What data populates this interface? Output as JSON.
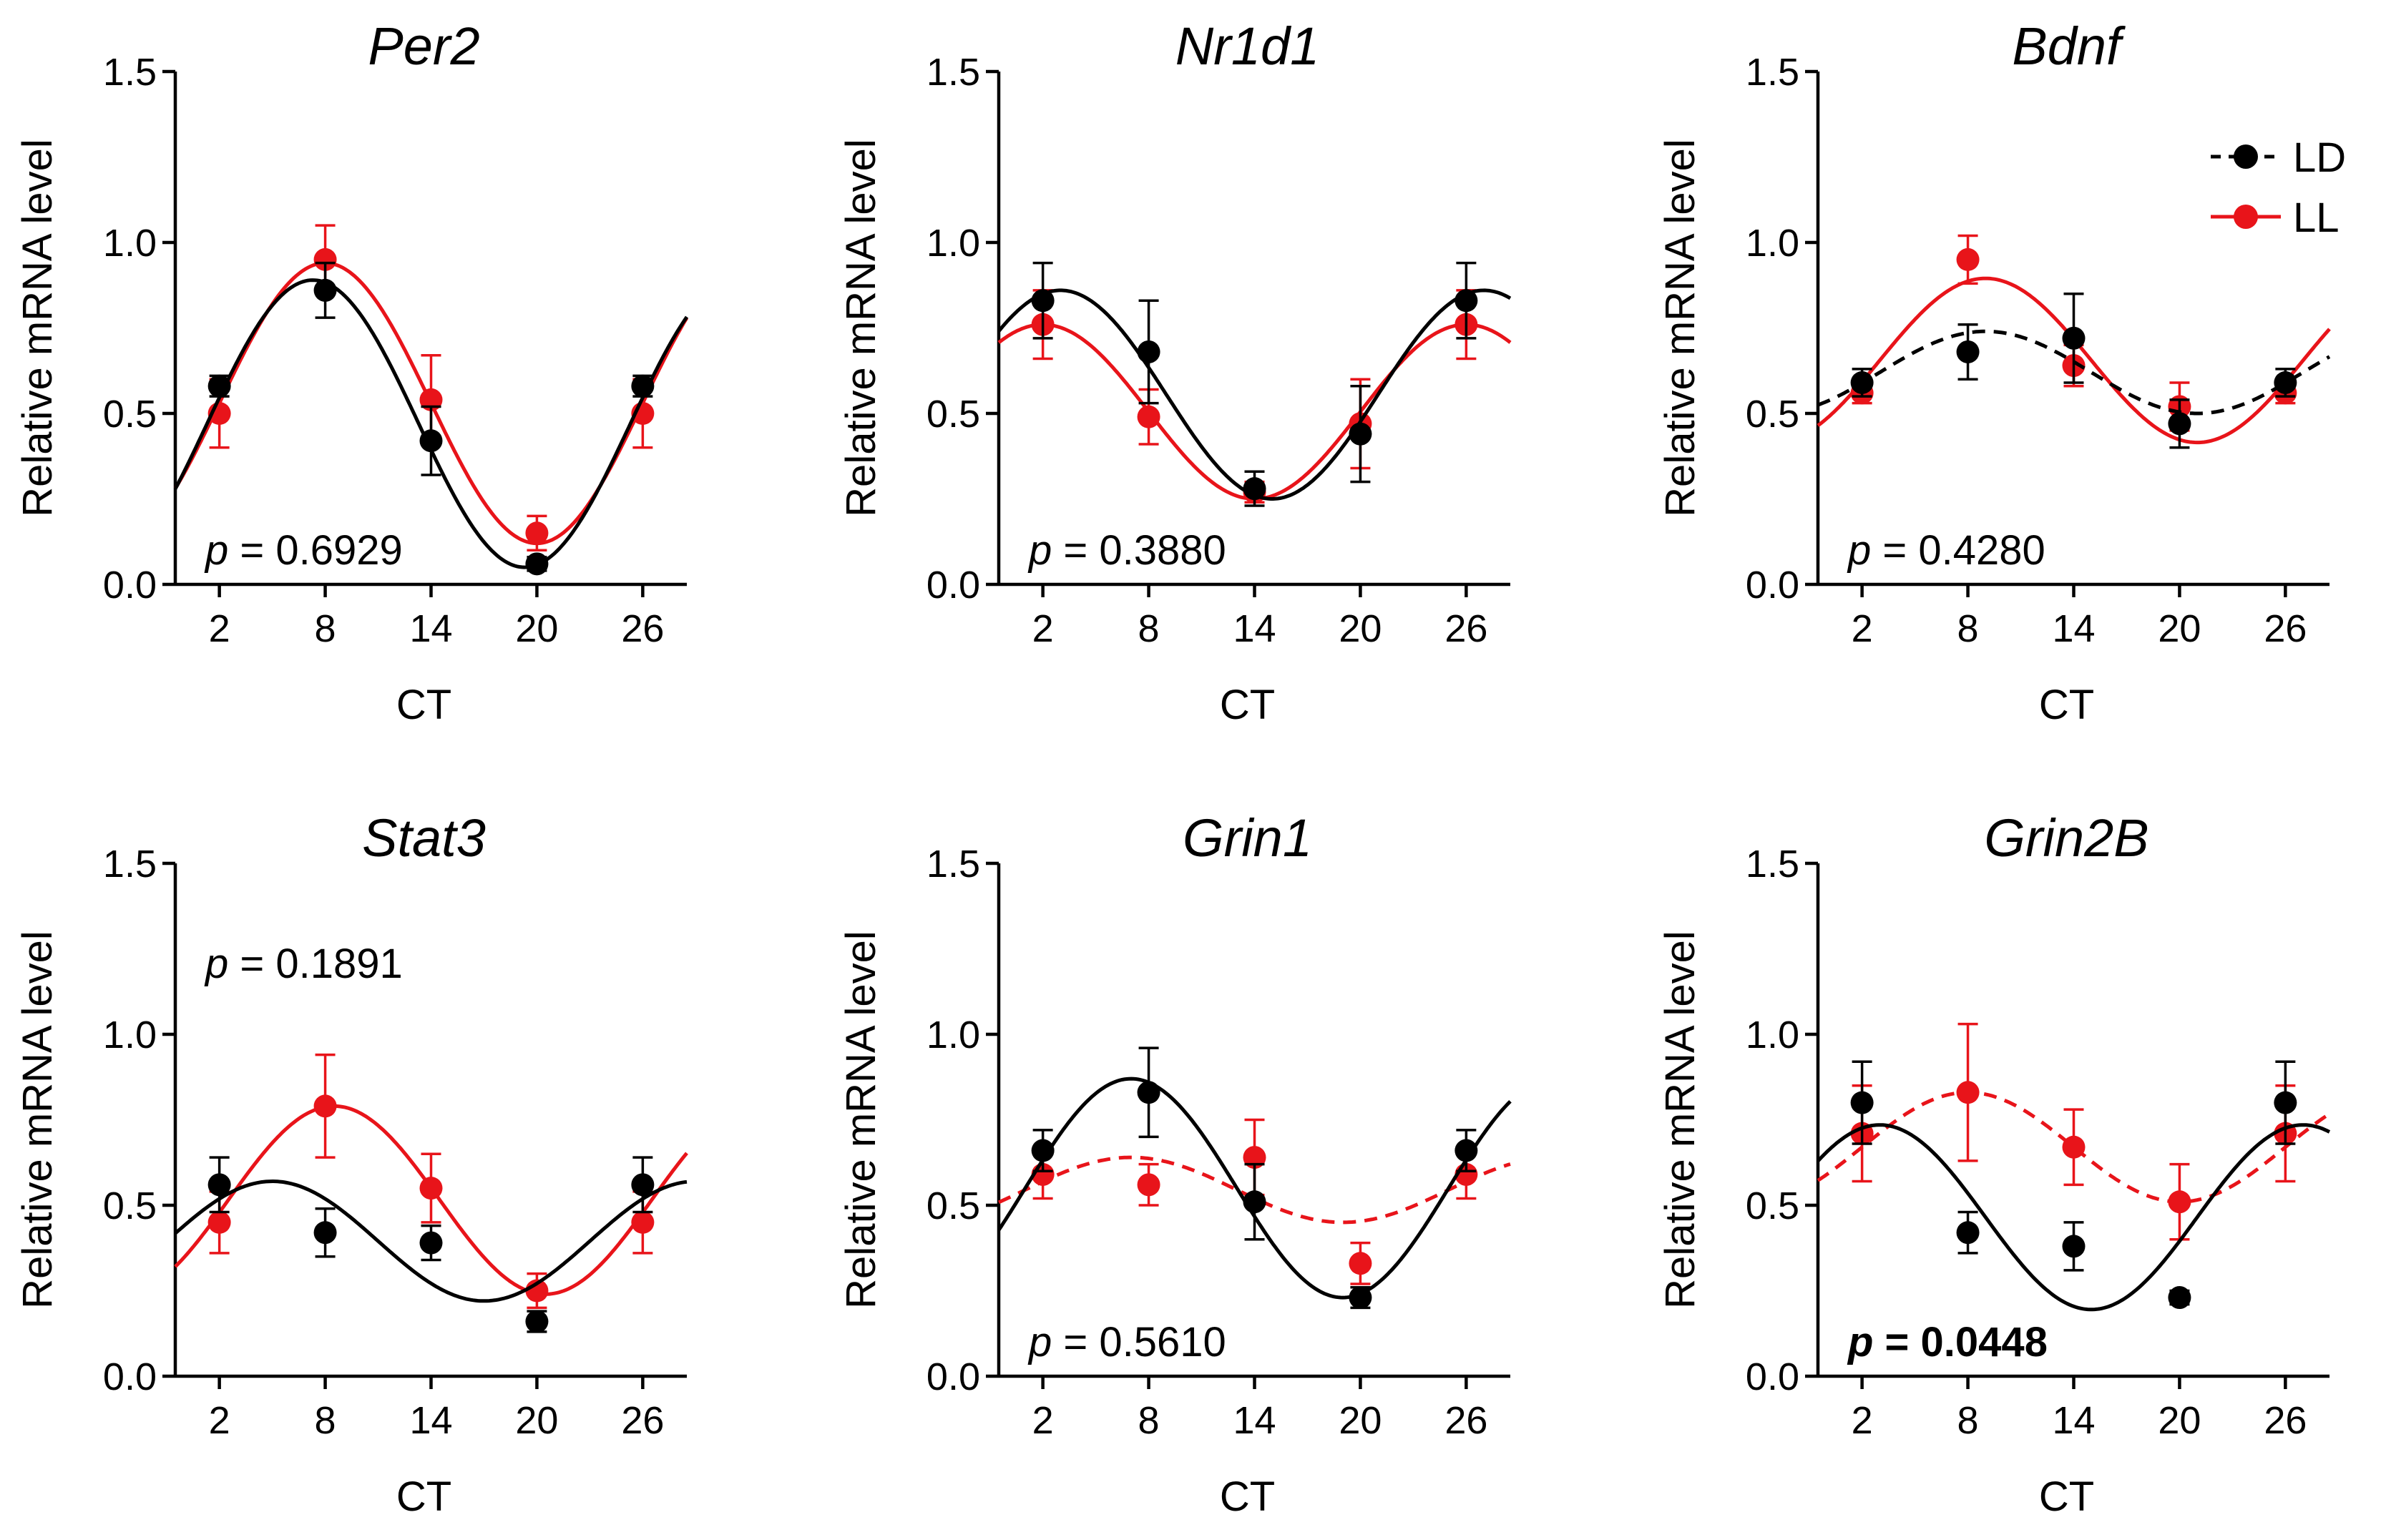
{
  "colors": {
    "LD": "#000000",
    "LL": "#e8141a"
  },
  "legend": {
    "placement": "top-right of third panel",
    "items": [
      {
        "label": "LD",
        "color": "#000000",
        "style": "dashed"
      },
      {
        "label": "LL",
        "color": "#e8141a",
        "style": "solid"
      }
    ]
  },
  "chart_data": [
    {
      "type": "scatter",
      "title": "Per2",
      "xlabel": "CT",
      "ylabel": "Relative mRNA level",
      "categories": [
        "2",
        "8",
        "14",
        "20",
        "26"
      ],
      "x": [
        2,
        8,
        14,
        20,
        26
      ],
      "xlim": [
        -0.5,
        28.5
      ],
      "ylim": [
        0,
        1.5
      ],
      "yticks": [
        "0.0",
        "0.5",
        "1.0",
        "1.5"
      ],
      "p_value": "0.6929",
      "p_bold": false,
      "p_position": "bottom-left",
      "series": [
        {
          "name": "LD",
          "values": [
            0.58,
            0.86,
            0.42,
            0.06,
            0.58
          ],
          "errors": [
            0.03,
            0.08,
            0.1,
            0.02,
            0.03
          ],
          "fit": {
            "mesor": 0.47,
            "amplitude": 0.42,
            "acrophase": 7.3,
            "dashed": false
          }
        },
        {
          "name": "LL",
          "values": [
            0.5,
            0.95,
            0.54,
            0.15,
            0.5
          ],
          "errors": [
            0.1,
            0.1,
            0.13,
            0.05,
            0.1
          ],
          "fit": {
            "mesor": 0.53,
            "amplitude": 0.41,
            "acrophase": 8.0,
            "dashed": false
          }
        }
      ]
    },
    {
      "type": "scatter",
      "title": "Nr1d1",
      "xlabel": "CT",
      "ylabel": "Relative mRNA level",
      "categories": [
        "2",
        "8",
        "14",
        "20",
        "26"
      ],
      "x": [
        2,
        8,
        14,
        20,
        26
      ],
      "xlim": [
        -0.5,
        28.5
      ],
      "ylim": [
        0,
        1.5
      ],
      "yticks": [
        "0.0",
        "0.5",
        "1.0",
        "1.5"
      ],
      "p_value": "0.3880",
      "p_bold": false,
      "p_position": "bottom-left",
      "series": [
        {
          "name": "LD",
          "values": [
            0.83,
            0.68,
            0.28,
            0.44,
            0.83
          ],
          "errors": [
            0.11,
            0.15,
            0.05,
            0.14,
            0.11
          ],
          "fit": {
            "mesor": 0.555,
            "amplitude": 0.305,
            "acrophase": 3.0,
            "dashed": false
          }
        },
        {
          "name": "LL",
          "values": [
            0.76,
            0.49,
            0.27,
            0.47,
            0.76
          ],
          "errors": [
            0.1,
            0.08,
            0.03,
            0.13,
            0.1
          ],
          "fit": {
            "mesor": 0.505,
            "amplitude": 0.255,
            "acrophase": 2.0,
            "dashed": false
          }
        }
      ]
    },
    {
      "type": "scatter",
      "title": "Bdnf",
      "xlabel": "CT",
      "ylabel": "Relative mRNA level",
      "categories": [
        "2",
        "8",
        "14",
        "20",
        "26"
      ],
      "x": [
        2,
        8,
        14,
        20,
        26
      ],
      "xlim": [
        -0.5,
        28.5
      ],
      "ylim": [
        0,
        1.5
      ],
      "yticks": [
        "0.0",
        "0.5",
        "1.0",
        "1.5"
      ],
      "p_value": "0.4280",
      "p_bold": false,
      "p_position": "bottom-left",
      "series": [
        {
          "name": "LD",
          "values": [
            0.59,
            0.68,
            0.72,
            0.47,
            0.59
          ],
          "errors": [
            0.04,
            0.08,
            0.13,
            0.07,
            0.04
          ],
          "fit": {
            "mesor": 0.62,
            "amplitude": 0.12,
            "acrophase": 9.0,
            "dashed": true
          }
        },
        {
          "name": "LL",
          "values": [
            0.56,
            0.95,
            0.64,
            0.52,
            0.56
          ],
          "errors": [
            0.03,
            0.07,
            0.06,
            0.07,
            0.03
          ],
          "fit": {
            "mesor": 0.655,
            "amplitude": 0.24,
            "acrophase": 9.0,
            "dashed": false
          }
        }
      ]
    },
    {
      "type": "scatter",
      "title": "Stat3",
      "xlabel": "CT",
      "ylabel": "Relative mRNA level",
      "categories": [
        "2",
        "8",
        "14",
        "20",
        "26"
      ],
      "x": [
        2,
        8,
        14,
        20,
        26
      ],
      "xlim": [
        -0.5,
        28.5
      ],
      "ylim": [
        0,
        1.5
      ],
      "yticks": [
        "0.0",
        "0.5",
        "1.0",
        "1.5"
      ],
      "p_value": "0.1891",
      "p_bold": false,
      "p_position": "top-left",
      "series": [
        {
          "name": "LD",
          "values": [
            0.56,
            0.42,
            0.39,
            0.16,
            0.56
          ],
          "errors": [
            0.08,
            0.07,
            0.05,
            0.03,
            0.08
          ],
          "fit": {
            "mesor": 0.395,
            "amplitude": 0.175,
            "acrophase": 5.0,
            "dashed": false
          }
        },
        {
          "name": "LL",
          "values": [
            0.45,
            0.79,
            0.55,
            0.25,
            0.45
          ],
          "errors": [
            0.09,
            0.15,
            0.1,
            0.05,
            0.09
          ],
          "fit": {
            "mesor": 0.515,
            "amplitude": 0.275,
            "acrophase": 8.5,
            "dashed": false
          }
        }
      ]
    },
    {
      "type": "scatter",
      "title": "Grin1",
      "xlabel": "CT",
      "ylabel": "Relative mRNA level",
      "categories": [
        "2",
        "8",
        "14",
        "20",
        "26"
      ],
      "x": [
        2,
        8,
        14,
        20,
        26
      ],
      "xlim": [
        -0.5,
        28.5
      ],
      "ylim": [
        0,
        1.5
      ],
      "yticks": [
        "0.0",
        "0.5",
        "1.0",
        "1.5"
      ],
      "p_value": "0.5610",
      "p_bold": false,
      "p_position": "bottom-left",
      "series": [
        {
          "name": "LD",
          "values": [
            0.66,
            0.83,
            0.51,
            0.23,
            0.66
          ],
          "errors": [
            0.06,
            0.13,
            0.11,
            0.03,
            0.06
          ],
          "fit": {
            "mesor": 0.55,
            "amplitude": 0.32,
            "acrophase": 7.0,
            "dashed": false
          }
        },
        {
          "name": "LL",
          "values": [
            0.59,
            0.56,
            0.64,
            0.33,
            0.59
          ],
          "errors": [
            0.07,
            0.06,
            0.11,
            0.06,
            0.07
          ],
          "fit": {
            "mesor": 0.545,
            "amplitude": 0.095,
            "acrophase": 7.0,
            "dashed": true
          }
        }
      ]
    },
    {
      "type": "scatter",
      "title": "Grin2B",
      "xlabel": "CT",
      "ylabel": "Relative mRNA level",
      "categories": [
        "2",
        "8",
        "14",
        "20",
        "26"
      ],
      "x": [
        2,
        8,
        14,
        20,
        26
      ],
      "xlim": [
        -0.5,
        28.5
      ],
      "ylim": [
        0,
        1.5
      ],
      "yticks": [
        "0.0",
        "0.5",
        "1.0",
        "1.5"
      ],
      "p_value": "0.0448",
      "p_bold": true,
      "p_position": "bottom-left",
      "series": [
        {
          "name": "LD",
          "values": [
            0.8,
            0.42,
            0.38,
            0.23,
            0.8
          ],
          "errors": [
            0.12,
            0.06,
            0.07,
            0.02,
            0.12
          ],
          "fit": {
            "mesor": 0.465,
            "amplitude": 0.27,
            "acrophase": 3.0,
            "dashed": false
          }
        },
        {
          "name": "LL",
          "values": [
            0.71,
            0.83,
            0.67,
            0.51,
            0.71
          ],
          "errors": [
            0.14,
            0.2,
            0.11,
            0.11,
            0.14
          ],
          "fit": {
            "mesor": 0.67,
            "amplitude": 0.16,
            "acrophase": 8.0,
            "dashed": true
          }
        }
      ]
    }
  ]
}
